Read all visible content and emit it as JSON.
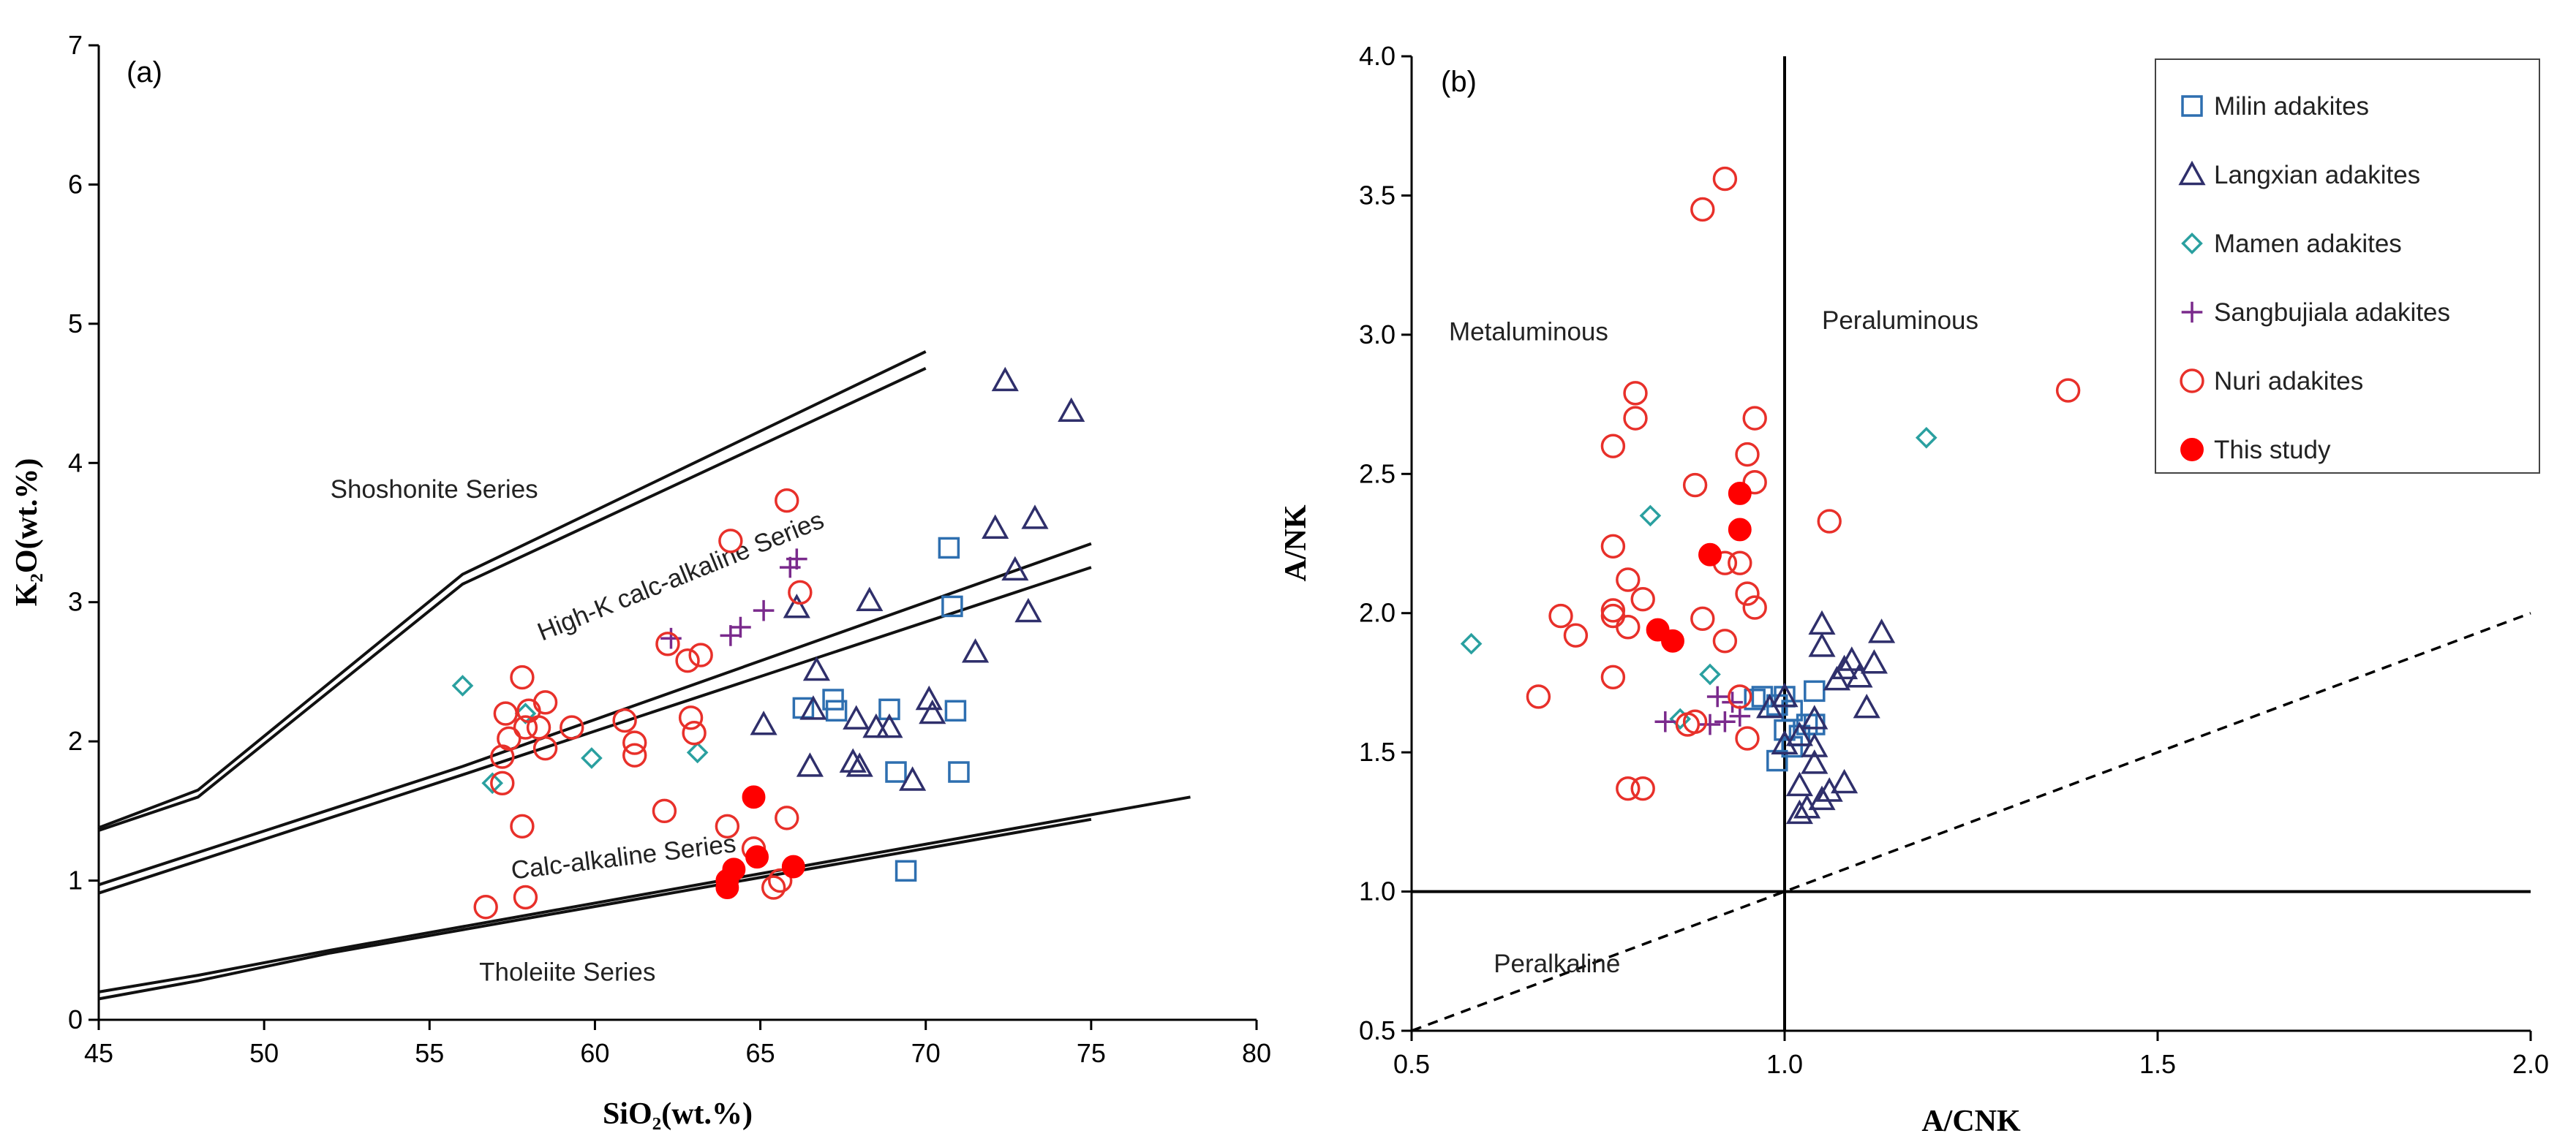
{
  "chart_data": [
    {
      "type": "scatter",
      "panel_label": "(a)",
      "xlabel": "SiO₂(wt.%)",
      "ylabel": "K₂O(wt.%)",
      "xlim": [
        45,
        80
      ],
      "ylim": [
        0,
        7
      ],
      "xticks": [
        "45",
        "50",
        "55",
        "60",
        "65",
        "70",
        "75",
        "80"
      ],
      "yticks": [
        "0",
        "1",
        "2",
        "3",
        "4",
        "5",
        "6",
        "7"
      ],
      "annotations": [
        {
          "text": "Shoshonite Series",
          "x": 52,
          "y": 3.75,
          "rotate": 0
        },
        {
          "text": "High-K calc-alkaline Series",
          "x": 58.4,
          "y": 2.72,
          "rotate": -22
        },
        {
          "text": "Calc-alkaline Series",
          "x": 57.5,
          "y": 1.01,
          "rotate": -7
        },
        {
          "text": "Tholeiite Series",
          "x": 56.5,
          "y": 0.28,
          "rotate": 0
        }
      ],
      "boundaries": [
        [
          [
            45,
            1.38
          ],
          [
            48,
            1.65
          ],
          [
            56,
            3.2
          ],
          [
            70,
            4.8
          ]
        ],
        [
          [
            45,
            1.36
          ],
          [
            48,
            1.6
          ],
          [
            56,
            3.13
          ],
          [
            70,
            4.68
          ]
        ],
        [
          [
            45,
            0.97
          ],
          [
            56,
            1.82
          ],
          [
            75,
            3.42
          ]
        ],
        [
          [
            45,
            0.91
          ],
          [
            56,
            1.76
          ],
          [
            75,
            3.25
          ]
        ],
        [
          [
            45,
            0.2
          ],
          [
            48,
            0.32
          ],
          [
            52,
            0.5
          ],
          [
            78,
            1.6
          ]
        ],
        [
          [
            45,
            0.15
          ],
          [
            48,
            0.28
          ],
          [
            52,
            0.48
          ],
          [
            75,
            1.44
          ]
        ]
      ],
      "series": [
        {
          "name": "Milin adakites",
          "marker": "square",
          "color": "#2e6fb0",
          "points": [
            [
              70.7,
              3.39
            ],
            [
              70.8,
              2.97
            ],
            [
              66.3,
              2.24
            ],
            [
              67.2,
              2.3
            ],
            [
              67.3,
              2.22
            ],
            [
              68.9,
              2.23
            ],
            [
              70.9,
              2.22
            ],
            [
              69.1,
              1.78
            ],
            [
              71.0,
              1.78
            ],
            [
              69.4,
              1.07
            ]
          ]
        },
        {
          "name": "Langxian adakites",
          "marker": "triangle",
          "color": "#2f2f6b",
          "points": [
            [
              72.4,
              4.59
            ],
            [
              74.4,
              4.37
            ],
            [
              73.3,
              3.6
            ],
            [
              72.1,
              3.53
            ],
            [
              72.7,
              3.23
            ],
            [
              73.1,
              2.93
            ],
            [
              66.1,
              2.96
            ],
            [
              68.3,
              3.01
            ],
            [
              71.5,
              2.64
            ],
            [
              66.7,
              2.51
            ],
            [
              70.1,
              2.3
            ],
            [
              70.2,
              2.2
            ],
            [
              66.6,
              2.23
            ],
            [
              65.1,
              2.12
            ],
            [
              67.9,
              2.16
            ],
            [
              68.5,
              2.1
            ],
            [
              68.9,
              2.1
            ],
            [
              67.8,
              1.85
            ],
            [
              68.0,
              1.82
            ],
            [
              66.5,
              1.82
            ],
            [
              69.6,
              1.72
            ]
          ]
        },
        {
          "name": "Mamen adakites",
          "marker": "diamond",
          "color": "#2aa0a0",
          "points": [
            [
              56.0,
              2.4
            ],
            [
              57.9,
              2.2
            ],
            [
              59.9,
              1.88
            ],
            [
              63.1,
              1.92
            ],
            [
              56.9,
              1.7
            ]
          ]
        },
        {
          "name": "Sangbujiala adakites",
          "marker": "plus",
          "color": "#7a2a8c",
          "points": [
            [
              66.1,
              3.31
            ],
            [
              65.9,
              3.25
            ],
            [
              65.1,
              2.94
            ],
            [
              64.4,
              2.82
            ],
            [
              64.1,
              2.76
            ],
            [
              62.3,
              2.74
            ]
          ]
        },
        {
          "name": "Nuri adakites",
          "marker": "circle-open",
          "color": "#e8302a",
          "points": [
            [
              65.8,
              3.73
            ],
            [
              64.1,
              3.44
            ],
            [
              66.2,
              3.07
            ],
            [
              62.2,
              2.7
            ],
            [
              63.2,
              2.62
            ],
            [
              62.8,
              2.58
            ],
            [
              57.8,
              2.46
            ],
            [
              57.3,
              2.2
            ],
            [
              58.0,
              2.22
            ],
            [
              58.5,
              2.28
            ],
            [
              59.3,
              2.1
            ],
            [
              60.9,
              2.15
            ],
            [
              62.9,
              2.17
            ],
            [
              57.4,
              2.02
            ],
            [
              58.3,
              2.1
            ],
            [
              57.9,
              2.1
            ],
            [
              61.2,
              1.99
            ],
            [
              61.2,
              1.9
            ],
            [
              58.5,
              1.95
            ],
            [
              63.0,
              2.06
            ],
            [
              57.2,
              1.89
            ],
            [
              57.2,
              1.7
            ],
            [
              62.1,
              1.5
            ],
            [
              65.8,
              1.45
            ],
            [
              57.8,
              1.39
            ],
            [
              64.0,
              1.39
            ],
            [
              64.8,
              1.23
            ],
            [
              65.6,
              1.0
            ],
            [
              65.4,
              0.95
            ],
            [
              57.9,
              0.88
            ],
            [
              56.7,
              0.81
            ]
          ]
        },
        {
          "name": "This study",
          "marker": "circle-filled",
          "color": "#ff0000",
          "points": [
            [
              64.8,
              1.6
            ],
            [
              64.9,
              1.17
            ],
            [
              66.0,
              1.1
            ],
            [
              64.2,
              1.08
            ],
            [
              64.0,
              1.0
            ],
            [
              64.0,
              0.95
            ]
          ]
        }
      ]
    },
    {
      "type": "scatter",
      "panel_label": "(b)",
      "xlabel": "A/CNK",
      "ylabel": "A/NK",
      "xlim": [
        0.5,
        2.0
      ],
      "ylim": [
        0.5,
        4.0
      ],
      "xticks": [
        "0.5",
        "1.0",
        "1.5",
        "2.0"
      ],
      "yticks": [
        "0.5",
        "1.0",
        "1.5",
        "2.0",
        "2.5",
        "3.0",
        "3.5",
        "4.0"
      ],
      "annotations": [
        {
          "text": "Metaluminous",
          "x": 0.55,
          "y": 2.98,
          "rotate": 0
        },
        {
          "text": "Peraluminous",
          "x": 1.05,
          "y": 3.02,
          "rotate": 0
        },
        {
          "text": "Peralkaline",
          "x": 0.61,
          "y": 0.71,
          "rotate": 0
        }
      ],
      "reference_lines": {
        "vertical_x": 1.0,
        "horizontal_y": 1.0,
        "dashed_from": [
          0.5,
          0.5
        ],
        "dashed_to": [
          2.0,
          2.0
        ]
      },
      "legend_position": "top-right",
      "legend": [
        "Milin adakites",
        "Langxian adakites",
        "Mamen adakites",
        "Sangbujiala adakites",
        "Nuri adakites",
        "This study"
      ],
      "series": [
        {
          "name": "Milin adakites",
          "marker": "square",
          "color": "#2e6fb0",
          "points": [
            [
              1.04,
              1.72
            ],
            [
              1.0,
              1.7
            ],
            [
              0.97,
              1.7
            ],
            [
              0.96,
              1.69
            ],
            [
              0.99,
              1.67
            ],
            [
              1.01,
              1.65
            ],
            [
              1.03,
              1.6
            ],
            [
              1.0,
              1.58
            ],
            [
              1.02,
              1.56
            ],
            [
              1.01,
              1.52
            ],
            [
              0.99,
              1.47
            ],
            [
              1.04,
              1.6
            ]
          ]
        },
        {
          "name": "Langxian adakites",
          "marker": "triangle",
          "color": "#2f2f6b",
          "points": [
            [
              1.05,
              1.96
            ],
            [
              1.13,
              1.93
            ],
            [
              1.05,
              1.88
            ],
            [
              1.09,
              1.83
            ],
            [
              1.12,
              1.82
            ],
            [
              1.08,
              1.8
            ],
            [
              1.1,
              1.77
            ],
            [
              1.07,
              1.76
            ],
            [
              1.0,
              1.7
            ],
            [
              0.98,
              1.66
            ],
            [
              1.04,
              1.62
            ],
            [
              1.11,
              1.66
            ],
            [
              1.02,
              1.56
            ],
            [
              1.04,
              1.52
            ],
            [
              1.0,
              1.53
            ],
            [
              1.04,
              1.46
            ],
            [
              1.02,
              1.38
            ],
            [
              1.08,
              1.39
            ],
            [
              1.06,
              1.36
            ],
            [
              1.05,
              1.33
            ],
            [
              1.03,
              1.3
            ],
            [
              1.02,
              1.28
            ]
          ]
        },
        {
          "name": "Mamen adakites",
          "marker": "diamond",
          "color": "#2aa0a0",
          "points": [
            [
              1.19,
              2.63
            ],
            [
              0.82,
              2.35
            ],
            [
              0.58,
              1.89
            ],
            [
              0.9,
              1.78
            ],
            [
              0.86,
              1.62
            ]
          ]
        },
        {
          "name": "Sangbujiala adakites",
          "marker": "plus",
          "color": "#7a2a8c",
          "points": [
            [
              0.91,
              1.7
            ],
            [
              0.93,
              1.68
            ],
            [
              0.94,
              1.63
            ],
            [
              0.92,
              1.61
            ],
            [
              0.9,
              1.6
            ],
            [
              0.84,
              1.61
            ]
          ]
        },
        {
          "name": "Nuri adakites",
          "marker": "circle-open",
          "color": "#e8302a",
          "points": [
            [
              0.92,
              3.56
            ],
            [
              0.89,
              3.45
            ],
            [
              1.38,
              2.8
            ],
            [
              0.8,
              2.79
            ],
            [
              0.8,
              2.7
            ],
            [
              0.96,
              2.7
            ],
            [
              0.77,
              2.6
            ],
            [
              0.95,
              2.57
            ],
            [
              0.96,
              2.47
            ],
            [
              0.88,
              2.46
            ],
            [
              1.06,
              2.33
            ],
            [
              0.77,
              2.24
            ],
            [
              0.92,
              2.18
            ],
            [
              0.94,
              2.18
            ],
            [
              0.79,
              2.12
            ],
            [
              0.95,
              2.07
            ],
            [
              0.81,
              2.05
            ],
            [
              0.96,
              2.02
            ],
            [
              0.77,
              2.01
            ],
            [
              0.7,
              1.99
            ],
            [
              0.77,
              1.99
            ],
            [
              0.89,
              1.98
            ],
            [
              0.79,
              1.95
            ],
            [
              0.72,
              1.92
            ],
            [
              0.92,
              1.9
            ],
            [
              0.77,
              1.77
            ],
            [
              0.67,
              1.7
            ],
            [
              0.94,
              1.7
            ],
            [
              0.88,
              1.61
            ],
            [
              0.87,
              1.6
            ],
            [
              0.95,
              1.55
            ],
            [
              0.79,
              1.37
            ],
            [
              0.81,
              1.37
            ]
          ]
        },
        {
          "name": "This study",
          "marker": "circle-filled",
          "color": "#ff0000",
          "points": [
            [
              0.94,
              2.43
            ],
            [
              0.94,
              2.3
            ],
            [
              0.9,
              2.21
            ],
            [
              0.83,
              1.94
            ],
            [
              0.85,
              1.9
            ]
          ]
        }
      ]
    }
  ]
}
